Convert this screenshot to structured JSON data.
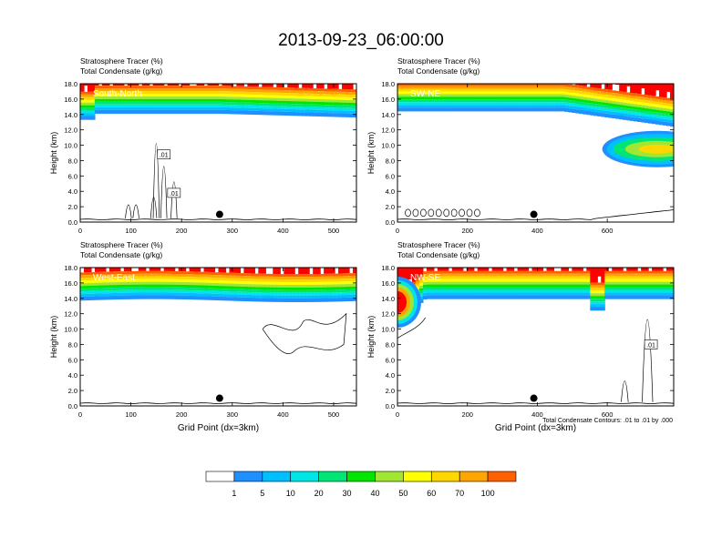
{
  "title": "2013-09-23_06:00:00",
  "footnote": "Total Condensate Contours: .01 to .01 by .000",
  "colors": {
    "scale": [
      "#ffffff",
      "#1e90ff",
      "#00bfff",
      "#00e5e5",
      "#00e676",
      "#00e600",
      "#a0e632",
      "#ffff00",
      "#ffd700",
      "#ffa500",
      "#ff6000",
      "#ff0000"
    ]
  },
  "chart_data": [
    {
      "type": "heatmap",
      "label": "South-North",
      "subtitle1": "Stratosphere Tracer   (%)",
      "subtitle2": "Total Condensate   (g/kg)",
      "ylabel": "Height (km)",
      "xlabel": "",
      "xlim": [
        0,
        545
      ],
      "ylim": [
        0,
        18
      ],
      "xticks": [
        0,
        100,
        200,
        300,
        400,
        500
      ],
      "yticks": [
        "0.0",
        "2.0",
        "4.0",
        "6.0",
        "8.0",
        "10.0",
        "12.0",
        "14.0",
        "16.0",
        "18.0"
      ],
      "dot_x": 275,
      "dot_y": 1.0,
      "contour_labels": [
        {
          "text": ".01",
          "x": 165,
          "y": 8.8
        },
        {
          "text": ".01",
          "x": 185,
          "y": 3.8
        }
      ]
    },
    {
      "type": "heatmap",
      "label": "SW-NE",
      "subtitle1": "Stratosphere Tracer   (%)",
      "subtitle2": "Total Condensate   (g/kg)",
      "ylabel": "Height (km)",
      "xlabel": "",
      "xlim": [
        0,
        790
      ],
      "ylim": [
        0,
        18
      ],
      "xticks": [
        0,
        200,
        400,
        600
      ],
      "yticks": [
        "0.0",
        "2.0",
        "4.0",
        "6.0",
        "8.0",
        "10.0",
        "12.0",
        "14.0",
        "16.0",
        "18.0"
      ],
      "dot_x": 390,
      "dot_y": 1.0,
      "contour_labels": []
    },
    {
      "type": "heatmap",
      "label": "West-East",
      "subtitle1": "Stratosphere Tracer   (%)",
      "subtitle2": "Total Condensate   (g/kg)",
      "ylabel": "Height (km)",
      "xlabel": "Grid Point (dx=3km)",
      "xlim": [
        0,
        545
      ],
      "ylim": [
        0,
        18
      ],
      "xticks": [
        0,
        100,
        200,
        300,
        400,
        500
      ],
      "yticks": [
        "0.0",
        "2.0",
        "4.0",
        "6.0",
        "8.0",
        "10.0",
        "12.0",
        "14.0",
        "16.0",
        "18.0"
      ],
      "dot_x": 275,
      "dot_y": 1.0,
      "contour_labels": []
    },
    {
      "type": "heatmap",
      "label": "NW-SE",
      "subtitle1": "Stratosphere Tracer   (%)",
      "subtitle2": "Total Condensate   (g/kg)",
      "ylabel": "Height (km)",
      "xlabel": "Grid Point (dx=3km)",
      "xlim": [
        0,
        790
      ],
      "ylim": [
        0,
        18
      ],
      "xticks": [
        0,
        200,
        400,
        600
      ],
      "yticks": [
        "0.0",
        "2.0",
        "4.0",
        "6.0",
        "8.0",
        "10.0",
        "12.0",
        "14.0",
        "16.0",
        "18.0"
      ],
      "dot_x": 390,
      "dot_y": 1.0,
      "contour_labels": [
        {
          "text": ".01",
          "x": 725,
          "y": 8.0
        }
      ]
    }
  ],
  "colorbar": {
    "labels": [
      "1",
      "5",
      "10",
      "20",
      "30",
      "40",
      "50",
      "60",
      "70",
      "100"
    ]
  }
}
